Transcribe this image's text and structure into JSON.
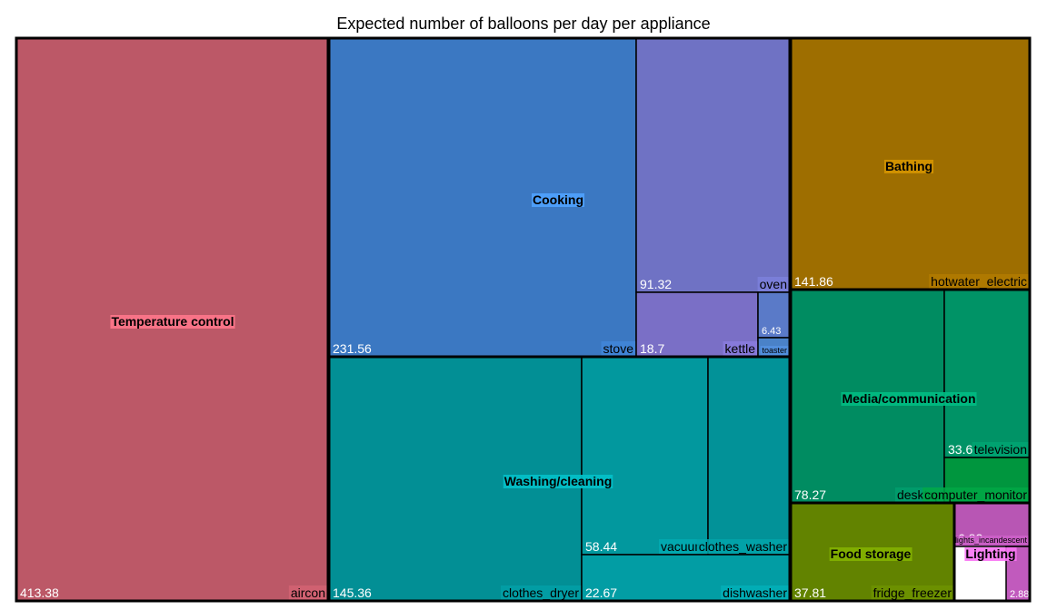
{
  "title": "Expected number of balloons per day per appliance",
  "chart_data": {
    "type": "treemap",
    "title": "Expected number of balloons per day per appliance",
    "groups": [
      {
        "name": "Temperature control",
        "color": "#bc5867",
        "items": [
          {
            "name": "aircon",
            "value": 413.38,
            "value_label": "413.38"
          }
        ]
      },
      {
        "name": "Cooking",
        "color": "#3b78c2",
        "items": [
          {
            "name": "stove",
            "value": 231.56,
            "value_label": "231.56"
          },
          {
            "name": "oven",
            "value": 91.32,
            "value_label": "91.32"
          },
          {
            "name": "kettle",
            "value": 18.7,
            "value_label": "18.7"
          },
          {
            "name": "",
            "value": 6.43,
            "value_label": "6.43"
          },
          {
            "name": "toaster",
            "value": 2.0,
            "value_label": ""
          }
        ]
      },
      {
        "name": "Bathing",
        "color": "#9e6e00",
        "items": [
          {
            "name": "hotwater_electric",
            "value": 141.86,
            "value_label": "141.86"
          }
        ]
      },
      {
        "name": "Washing/cleaning",
        "color": "#028f95",
        "items": [
          {
            "name": "clothes_dryer",
            "value": 145.36,
            "value_label": "145.36"
          },
          {
            "name": "vacuum",
            "value": 58.44,
            "value_label": "58.44"
          },
          {
            "name": "clothes_washer",
            "value": 40.0,
            "value_label": ""
          },
          {
            "name": "dishwasher",
            "value": 22.67,
            "value_label": "22.67"
          }
        ]
      },
      {
        "name": "Media/communication",
        "color": "#008c61",
        "items": [
          {
            "name": "desktop",
            "value": 78.27,
            "value_label": "78.27"
          },
          {
            "name": "television",
            "value": 33.6,
            "value_label": "33.6"
          },
          {
            "name": "computer_monitor",
            "value": 12.0,
            "value_label": ""
          }
        ]
      },
      {
        "name": "Food storage",
        "color": "#628300",
        "items": [
          {
            "name": "fridge_freezer",
            "value": 37.81,
            "value_label": "37.81"
          }
        ]
      },
      {
        "name": "Lighting",
        "color": "#b856b4",
        "items": [
          {
            "name": "lights_incandescent",
            "value": 6.82,
            "value_label": "6.82"
          },
          {
            "name": "",
            "value": 2.88,
            "value_label": "2.88"
          }
        ]
      }
    ]
  }
}
